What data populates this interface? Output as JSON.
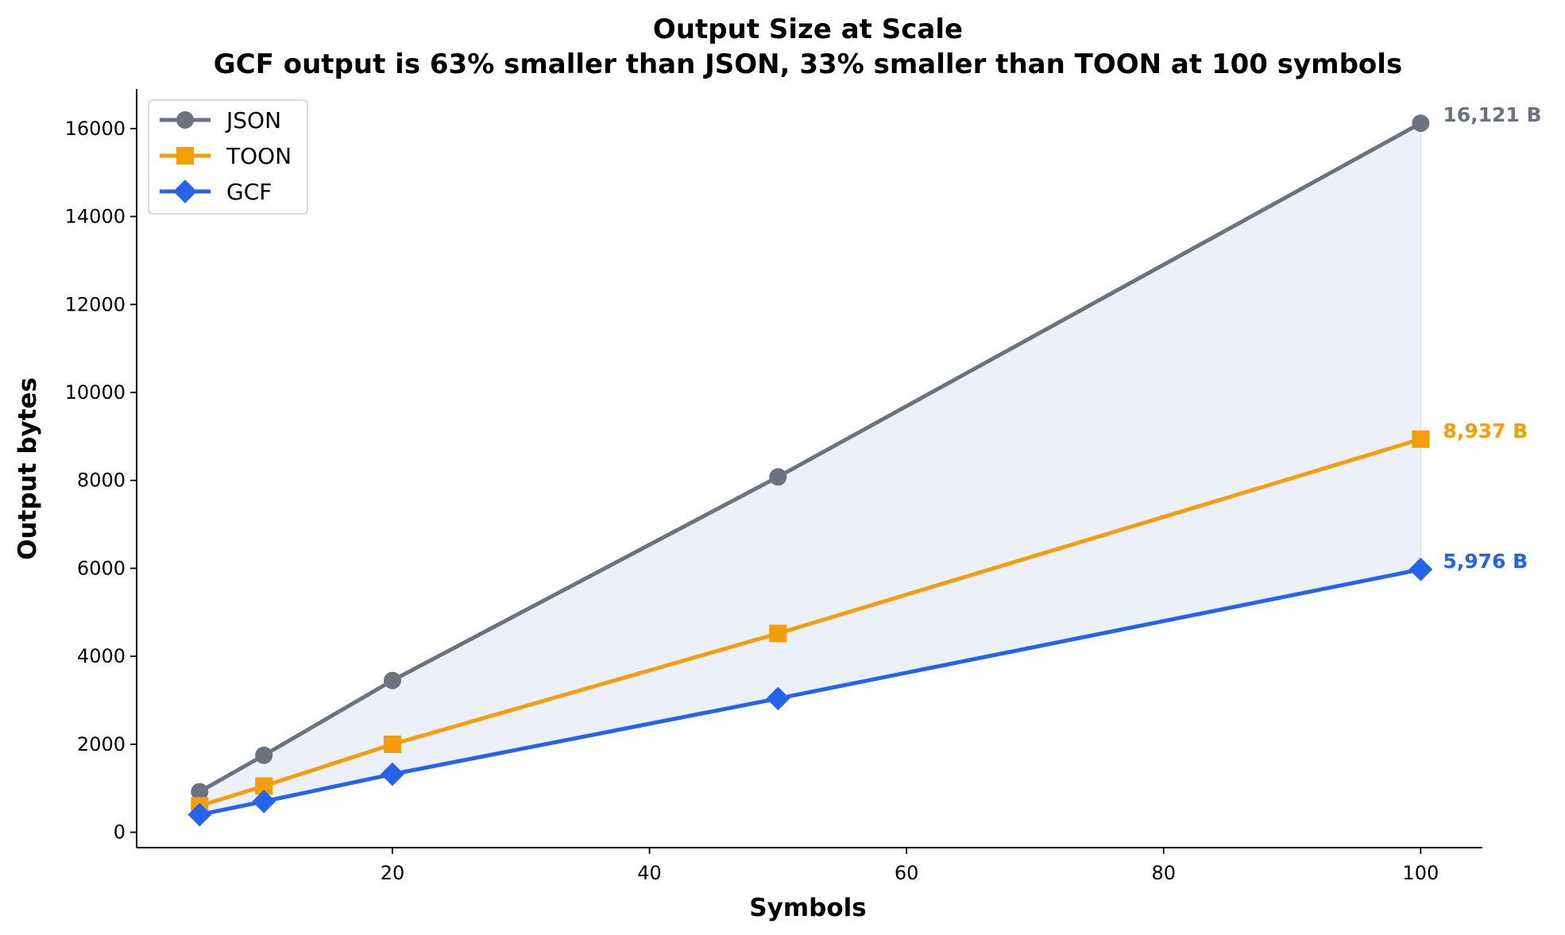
{
  "chart_data": {
    "type": "line",
    "title": "Output Size at Scale",
    "subtitle": "GCF output is 63% smaller than JSON, 33% smaller than TOON at 100 symbols",
    "xlabel": "Symbols",
    "ylabel": "Output bytes",
    "xlim": [
      0.1,
      104.8
    ],
    "ylim": [
      -350,
      16900
    ],
    "x_ticks": [
      20,
      40,
      60,
      80,
      100
    ],
    "y_ticks": [
      0,
      2000,
      4000,
      6000,
      8000,
      10000,
      12000,
      14000,
      16000
    ],
    "x": [
      5,
      10,
      20,
      50,
      100
    ],
    "series": [
      {
        "name": "JSON",
        "values": [
          920,
          1750,
          3450,
          8080,
          16121
        ],
        "color": "#6b7280",
        "marker": "circle",
        "end_label": "16,121 B"
      },
      {
        "name": "TOON",
        "values": [
          600,
          1050,
          2000,
          4520,
          8937
        ],
        "color": "#f59e0b",
        "marker": "square",
        "end_label": "8,937 B"
      },
      {
        "name": "GCF",
        "values": [
          400,
          700,
          1320,
          3040,
          5976
        ],
        "color": "#2563eb",
        "marker": "diamond",
        "end_label": "5,976 B"
      }
    ],
    "fill_between": {
      "upper": "JSON",
      "lower": "GCF",
      "color": "#dbe4f5"
    },
    "grid": false,
    "legend_position": "top-left"
  }
}
